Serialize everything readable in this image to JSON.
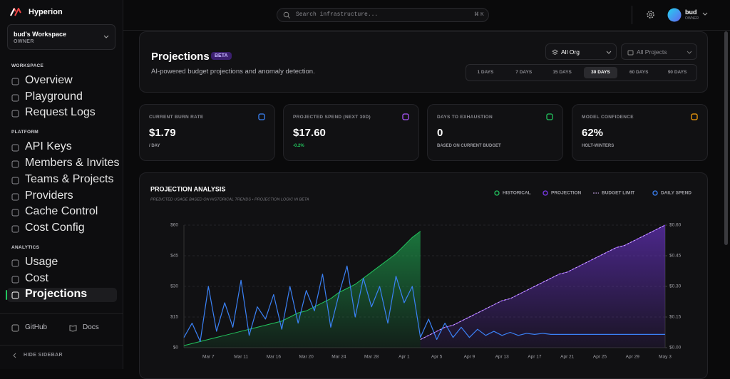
{
  "app": {
    "name": "Hyperion"
  },
  "workspace": {
    "name": "bud's Workspace",
    "role": "OWNER"
  },
  "nav": [
    {
      "title": "WORKSPACE",
      "items": [
        {
          "label": "Overview"
        },
        {
          "label": "Playground"
        },
        {
          "label": "Request Logs"
        }
      ]
    },
    {
      "title": "PLATFORM",
      "items": [
        {
          "label": "API Keys"
        },
        {
          "label": "Members & Invites"
        },
        {
          "label": "Teams & Projects"
        },
        {
          "label": "Providers"
        },
        {
          "label": "Cache Control"
        },
        {
          "label": "Cost Config"
        }
      ]
    },
    {
      "title": "ANALYTICS",
      "items": [
        {
          "label": "Usage"
        },
        {
          "label": "Cost"
        },
        {
          "label": "Projections",
          "active": true
        }
      ]
    }
  ],
  "footer": {
    "links": [
      "GitHub",
      "Docs"
    ],
    "collapse": "HIDE SIDEBAR"
  },
  "topbar": {
    "search": "Search infrastructure...",
    "shortcut": "⌘ K",
    "user": {
      "name": "bud",
      "role": "OWNER"
    }
  },
  "header": {
    "title": "Projections",
    "badge": "BETA",
    "subtitle": "AI-powered budget projections and anomaly detection.",
    "filters": [
      "All Org",
      "All Projects"
    ],
    "ranges": [
      "1 DAYS",
      "7 DAYS",
      "15 DAYS",
      "30 DAYS",
      "60 DAYS",
      "90 DAYS"
    ],
    "selected_range": 3
  },
  "stats": [
    {
      "label": "CURRENT BURN RATE",
      "value": "$1.79",
      "note": "/ DAY",
      "color": "#3b82f6"
    },
    {
      "label": "PROJECTED SPEND (NEXT 30D)",
      "value": "$17.60",
      "note": "-0.2%",
      "color": "#a855f7"
    },
    {
      "label": "DAYS TO EXHAUSTION",
      "value": "0",
      "note": "BASED ON CURRENT BUDGET",
      "color": "#22c55e"
    },
    {
      "label": "MODEL CONFIDENCE",
      "value": "62%",
      "note": "HOLT-WINTERS",
      "color": "#f59e0b"
    }
  ],
  "chart_data": {
    "type": "line",
    "title": "PROJECTION ANALYSIS",
    "subtitle": "PREDICTED USAGE BASED ON HISTORICAL TRENDS • PROJECTION LOGIC IN BETA",
    "categories": [
      null,
      null,
      null,
      "Mar 7",
      null,
      null,
      null,
      "Mar 11",
      null,
      null,
      null,
      "Mar 16",
      null,
      null,
      null,
      "Mar 20",
      null,
      null,
      null,
      "Mar 24",
      null,
      null,
      null,
      "Mar 28",
      null,
      null,
      null,
      "Apr 1",
      null,
      null,
      null,
      "Apr 5",
      null,
      null,
      null,
      "Apr 9",
      null,
      null,
      null,
      "Apr 13",
      null,
      null,
      null,
      "Apr 17",
      null,
      null,
      null,
      "Apr 21",
      null,
      null,
      null,
      "Apr 25",
      null,
      null,
      null,
      "Apr 29",
      null,
      null,
      null,
      "May 3"
    ],
    "series": [
      {
        "name": "HISTORICAL",
        "type": "area",
        "color": "#22c55e",
        "values": [
          1,
          2,
          3,
          4,
          5,
          6,
          7,
          8,
          9,
          10,
          11,
          12,
          13,
          15,
          17,
          18,
          20,
          22,
          24,
          27,
          29,
          31,
          34,
          37,
          40,
          43,
          46,
          50,
          54,
          57,
          null,
          null,
          null,
          null,
          null,
          null,
          null,
          null,
          null,
          null,
          null,
          null,
          null,
          null,
          null,
          null,
          null,
          null,
          null,
          null,
          null,
          null,
          null,
          null,
          null,
          null,
          null,
          null,
          null,
          null
        ]
      },
      {
        "name": "PROJECTION",
        "type": "area",
        "color": "#7c3aed",
        "values": [
          null,
          null,
          null,
          null,
          null,
          null,
          null,
          null,
          null,
          null,
          null,
          null,
          null,
          null,
          null,
          null,
          null,
          null,
          null,
          null,
          null,
          null,
          null,
          null,
          null,
          null,
          null,
          null,
          null,
          4,
          6,
          8,
          10,
          11,
          13,
          15,
          17,
          19,
          21,
          23,
          24,
          26,
          28,
          30,
          32,
          34,
          36,
          37,
          39,
          41,
          43,
          45,
          47,
          49,
          50,
          52,
          54,
          56,
          58,
          60
        ]
      },
      {
        "name": "BUDGET LIMIT",
        "type": "line",
        "dash": true,
        "color": "#d8b4fe",
        "values": [
          null,
          null,
          null,
          null,
          null,
          null,
          null,
          null,
          null,
          null,
          null,
          null,
          null,
          null,
          null,
          null,
          null,
          null,
          null,
          null,
          null,
          null,
          null,
          null,
          null,
          null,
          null,
          null,
          null,
          4,
          6,
          8,
          10,
          11,
          13,
          15,
          17,
          19,
          21,
          23,
          24,
          26,
          28,
          30,
          32,
          34,
          36,
          37,
          39,
          41,
          43,
          45,
          47,
          49,
          50,
          52,
          54,
          56,
          58,
          60
        ]
      },
      {
        "name": "DAILY SPEND",
        "type": "line",
        "axis": "y2",
        "color": "#3b82f6",
        "values": [
          0.05,
          0.12,
          0.03,
          0.3,
          0.08,
          0.22,
          0.1,
          0.33,
          0.06,
          0.2,
          0.14,
          0.26,
          0.09,
          0.3,
          0.12,
          0.28,
          0.18,
          0.36,
          0.1,
          0.26,
          0.4,
          0.15,
          0.34,
          0.2,
          0.3,
          0.12,
          0.35,
          0.22,
          0.3,
          0.05,
          0.14,
          0.04,
          0.12,
          0.05,
          0.1,
          0.05,
          0.09,
          0.06,
          0.08,
          0.06,
          0.075,
          0.06,
          0.07,
          0.065,
          0.07,
          0.065,
          0.065,
          0.065,
          0.065,
          0.065,
          0.065,
          0.065,
          0.065,
          0.065,
          0.065,
          0.065,
          0.065,
          0.065,
          0.065,
          0.065
        ]
      }
    ],
    "ylim": [
      0,
      60
    ],
    "yticks": [
      {
        "value": 0,
        "label": "$0"
      },
      {
        "value": 15,
        "label": "$15"
      },
      {
        "value": 30,
        "label": "$30"
      },
      {
        "value": 45,
        "label": "$45"
      },
      {
        "value": 60,
        "label": "$60"
      }
    ],
    "y2lim": [
      0,
      0.6
    ],
    "y2ticks": [
      {
        "value": 0,
        "label": "$0.00"
      },
      {
        "value": 0.15,
        "label": "$0.15"
      },
      {
        "value": 0.3,
        "label": "$0.30"
      },
      {
        "value": 0.45,
        "label": "$0.45"
      },
      {
        "value": 0.6,
        "label": "$0.60"
      }
    ],
    "grid": true
  }
}
